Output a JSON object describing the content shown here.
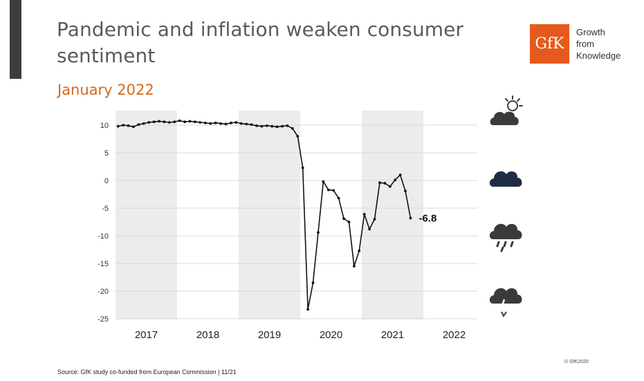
{
  "header": {
    "title_line1": "Pandemic and inflation weaken consumer",
    "title_line2": "sentiment",
    "subtitle": "January 2022"
  },
  "logo": {
    "mark": "GfK",
    "tagline": [
      "Growth",
      "from",
      "Knowledge"
    ],
    "color": "#e55a1c"
  },
  "weather_icons": [
    "sun-behind-cloud-icon",
    "cloud-icon",
    "rain-cloud-icon",
    "thunderstorm-cloud-icon"
  ],
  "footer": {
    "source": "Source: GfK study co-funded from European Commission | 11/21",
    "copyright": "© GfK2020"
  },
  "colors": {
    "line": "#111111",
    "band": "#ececec",
    "grid": "#d9d9d9",
    "icon": "#3a3a3a",
    "icon_dark": "#1f2d44"
  },
  "chart_data": {
    "type": "line",
    "title": "",
    "xlabel": "",
    "ylabel": "",
    "ylim": [
      -25,
      12
    ],
    "yticks": [
      10,
      5,
      0,
      -5,
      -10,
      -15,
      -20,
      -25
    ],
    "years": [
      "2017",
      "2018",
      "2019",
      "2020",
      "2021",
      "2022"
    ],
    "shaded_years": [
      "2017",
      "2019",
      "2021"
    ],
    "grid": true,
    "final_value_label": "-6.8",
    "series": [
      {
        "values": [
          9.8,
          10.0,
          9.9,
          9.7,
          10.1,
          10.3,
          10.5,
          10.6,
          10.7,
          10.6,
          10.5,
          10.6,
          10.8,
          10.6,
          10.7,
          10.6,
          10.5,
          10.4,
          10.3,
          10.4,
          10.3,
          10.2,
          10.4,
          10.5,
          10.3,
          10.2,
          10.1,
          9.9,
          9.8,
          9.9,
          9.8,
          9.7,
          9.8,
          9.9,
          9.4,
          8.0,
          2.3,
          -23.3,
          -18.5,
          -9.4,
          -0.2,
          -1.7,
          -1.8,
          -3.2,
          -6.9,
          -7.5,
          -15.5,
          -12.7,
          -6.1,
          -8.8,
          -7.0,
          -0.4,
          -0.5,
          -1.1,
          0.1,
          1.0,
          -1.9,
          -6.8
        ]
      }
    ]
  }
}
